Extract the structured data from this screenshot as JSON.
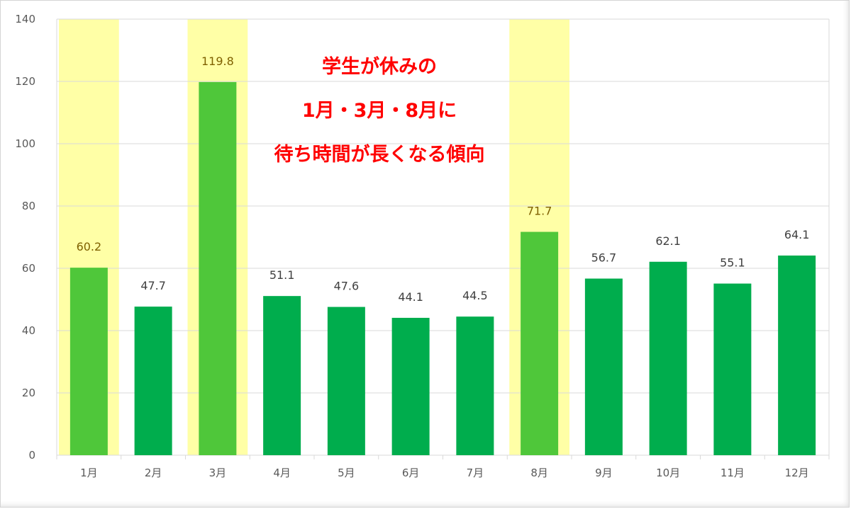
{
  "chart_data": {
    "type": "bar",
    "categories": [
      "1月",
      "2月",
      "3月",
      "4月",
      "5月",
      "6月",
      "7月",
      "8月",
      "9月",
      "10月",
      "11月",
      "12月"
    ],
    "values": [
      60.2,
      47.7,
      119.8,
      51.1,
      47.6,
      44.1,
      44.5,
      71.7,
      56.7,
      62.1,
      55.1,
      64.1
    ],
    "data_labels": [
      "60.2",
      "47.7",
      "119.8",
      "51.1",
      "47.6",
      "44.1",
      "44.5",
      "71.7",
      "56.7",
      "62.1",
      "55.1",
      "64.1"
    ],
    "highlighted_categories": [
      "1月",
      "3月",
      "8月"
    ],
    "ylim": [
      0,
      140
    ],
    "yticks": [
      "0",
      "20",
      "40",
      "60",
      "80",
      "100",
      "120",
      "140"
    ],
    "grid": true,
    "legend": "none",
    "annotation_lines": [
      "学生が休みの",
      "1月・3月・8月に",
      "待ち時間が長くなる傾向"
    ],
    "colors": {
      "bar": "#00ad4d",
      "bar_highlight": "#4fc73a",
      "highlight_band": "#ffffa6",
      "annotation": "#ff0000",
      "label_normal": "#404040",
      "label_highlight": "#7f6000",
      "grid": "#d9d9d9",
      "axis_text": "#595959"
    }
  }
}
